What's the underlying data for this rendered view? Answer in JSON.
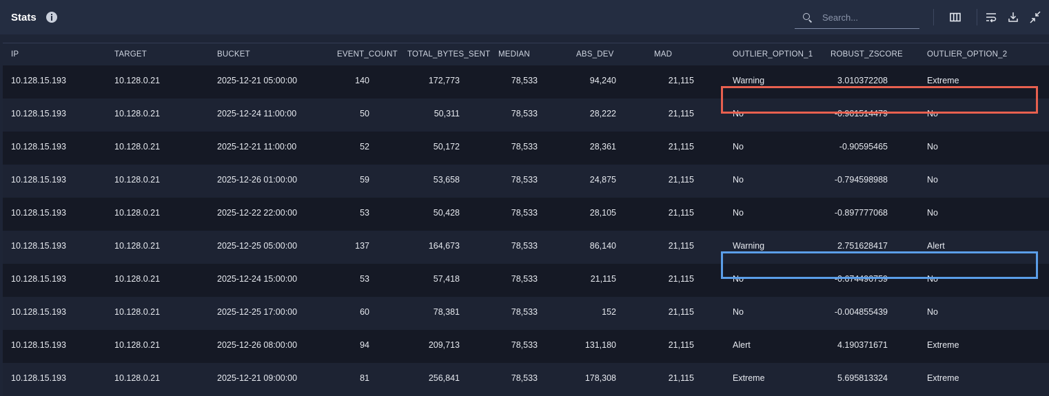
{
  "header": {
    "title": "Stats",
    "search_placeholder": "Search..."
  },
  "icons": [
    "info-icon",
    "search-icon",
    "columns-icon",
    "wrap-text-icon",
    "download-icon",
    "collapse-icon"
  ],
  "table": {
    "columns": [
      "IP",
      "TARGET",
      "BUCKET",
      "EVENT_COUNT",
      "TOTAL_BYTES_SENT",
      "MEDIAN",
      "ABS_DEV",
      "MAD",
      "OUTLIER_OPTION_1",
      "ROBUST_ZSCORE",
      "OUTLIER_OPTION_2"
    ],
    "rows": [
      [
        "10.128.15.193",
        "10.128.0.21",
        "2025-12-21 05:00:00",
        "140",
        "172,773",
        "78,533",
        "94,240",
        "21,115",
        "Warning",
        "3.010372208",
        "Extreme"
      ],
      [
        "10.128.15.193",
        "10.128.0.21",
        "2025-12-24 11:00:00",
        "50",
        "50,311",
        "78,533",
        "28,222",
        "21,115",
        "No",
        "-0.901514479",
        "No"
      ],
      [
        "10.128.15.193",
        "10.128.0.21",
        "2025-12-21 11:00:00",
        "52",
        "50,172",
        "78,533",
        "28,361",
        "21,115",
        "No",
        "-0.90595465",
        "No"
      ],
      [
        "10.128.15.193",
        "10.128.0.21",
        "2025-12-26 01:00:00",
        "59",
        "53,658",
        "78,533",
        "24,875",
        "21,115",
        "No",
        "-0.794598988",
        "No"
      ],
      [
        "10.128.15.193",
        "10.128.0.21",
        "2025-12-22 22:00:00",
        "53",
        "50,428",
        "78,533",
        "28,105",
        "21,115",
        "No",
        "-0.897777068",
        "No"
      ],
      [
        "10.128.15.193",
        "10.128.0.21",
        "2025-12-25 05:00:00",
        "137",
        "164,673",
        "78,533",
        "86,140",
        "21,115",
        "Warning",
        "2.751628417",
        "Alert"
      ],
      [
        "10.128.15.193",
        "10.128.0.21",
        "2025-12-24 15:00:00",
        "53",
        "57,418",
        "78,533",
        "21,115",
        "21,115",
        "No",
        "-0.674490759",
        "No"
      ],
      [
        "10.128.15.193",
        "10.128.0.21",
        "2025-12-25 17:00:00",
        "60",
        "78,381",
        "78,533",
        "152",
        "21,115",
        "No",
        "-0.004855439",
        "No"
      ],
      [
        "10.128.15.193",
        "10.128.0.21",
        "2025-12-26 08:00:00",
        "94",
        "209,713",
        "78,533",
        "131,180",
        "21,115",
        "Alert",
        "4.190371671",
        "Extreme"
      ],
      [
        "10.128.15.193",
        "10.128.0.21",
        "2025-12-21 09:00:00",
        "81",
        "256,841",
        "78,533",
        "178,308",
        "21,115",
        "Extreme",
        "5.695813324",
        "Extreme"
      ]
    ]
  },
  "highlight_colors": {
    "red": "#e8604f",
    "blue": "#5b9ee8"
  }
}
